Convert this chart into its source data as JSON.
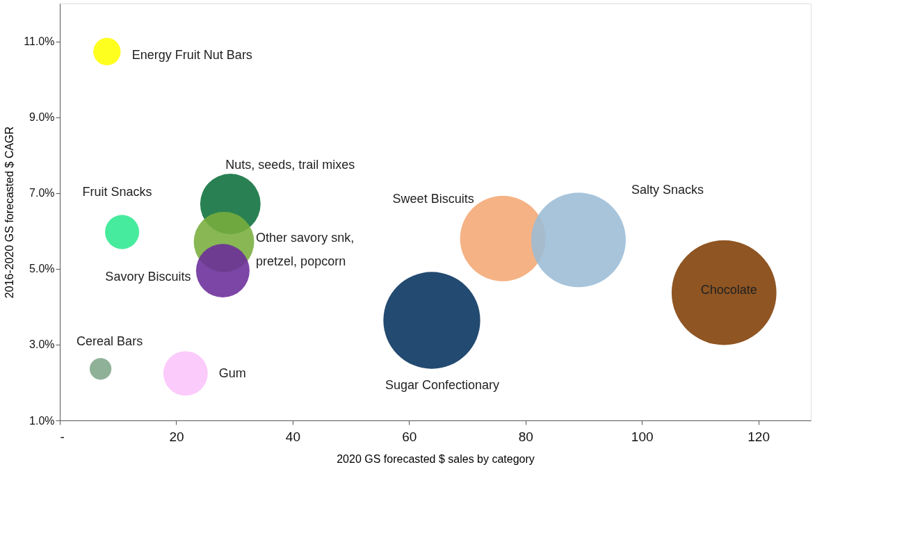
{
  "chart_data": {
    "type": "bubble",
    "xlabel": "2020 GS forecasted $ sales by category",
    "ylabel": "2016-2020 GS forecasted $ CAGR",
    "xlim": [
      0,
      129
    ],
    "xticks": [
      {
        "value": 0,
        "label": "-"
      },
      20,
      40,
      60,
      80,
      100,
      120
    ],
    "ylim": [
      1,
      12
    ],
    "yticks": [
      {
        "value": 1,
        "label": "1.0%"
      },
      {
        "value": 3,
        "label": "3.0%"
      },
      {
        "value": 5,
        "label": "5.0%"
      },
      {
        "value": 7,
        "label": "7.0%"
      },
      {
        "value": 9,
        "label": "9.0%"
      },
      {
        "value": 11,
        "label": "11.0%"
      }
    ],
    "grid": false,
    "series": [
      {
        "name": "Energy Fruit Nut Bars",
        "color": "#ffff00",
        "x": [
          8.1
        ],
        "values": [
          10.73
        ],
        "sizes": [
          0.068
        ]
      },
      {
        "name": "Fruit Snacks",
        "color": "#2ee88f",
        "x": [
          10.7
        ],
        "values": [
          5.97
        ],
        "sizes": [
          0.106
        ]
      },
      {
        "name": "Nuts, seeds, trail mixes",
        "color": "#0b6e3a",
        "x": [
          29.3
        ],
        "values": [
          6.71
        ],
        "sizes": [
          0.332
        ]
      },
      {
        "name": "Other savory snk,\npretzel, popcorn",
        "color": "#77ad3c",
        "x": [
          28.2
        ],
        "values": [
          5.71
        ],
        "sizes": [
          0.332
        ]
      },
      {
        "name": "Savory Biscuits",
        "color": "#6a2c9a",
        "x": [
          28.0
        ],
        "values": [
          4.95
        ],
        "sizes": [
          0.261
        ]
      },
      {
        "name": "Cereal Bars",
        "color": "#7fa68a",
        "x": [
          7.0
        ],
        "values": [
          2.36
        ],
        "sizes": [
          0.043
        ]
      },
      {
        "name": "Gum",
        "color": "#fbc4fb",
        "x": [
          21.6
        ],
        "values": [
          2.24
        ],
        "sizes": [
          0.18
        ]
      },
      {
        "name": "Sugar Confectionary",
        "color": "#04315c",
        "x": [
          63.9
        ],
        "values": [
          3.64
        ],
        "sizes": [
          0.854
        ]
      },
      {
        "name": "Sweet Biscuits",
        "color": "#f4a774",
        "x": [
          76.1
        ],
        "values": [
          5.8
        ],
        "sizes": [
          0.665
        ]
      },
      {
        "name": "Salty Snacks",
        "color": "#9bbcd6",
        "x": [
          89.1
        ],
        "values": [
          5.76
        ],
        "sizes": [
          0.814
        ]
      },
      {
        "name": "Chocolate",
        "color": "#7f3e04",
        "x": [
          114.1
        ],
        "values": [
          4.37
        ],
        "sizes": [
          1.0
        ]
      }
    ]
  }
}
